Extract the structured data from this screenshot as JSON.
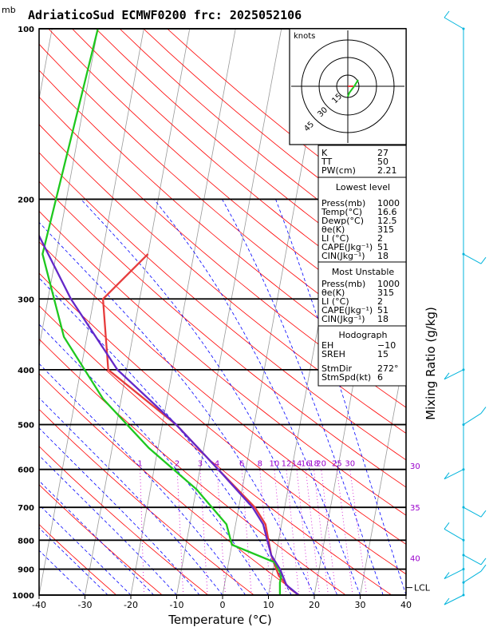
{
  "chart_data": {
    "type": "line",
    "title": "AdriaticoSud  ECMWF0200  frc: 2025052106",
    "pressure_unit": "mb",
    "xlabel": "Temperature (°C)",
    "right_label": "Mixing Ratio (g/kg)",
    "xlim": [
      -40,
      40
    ],
    "ylim": [
      1000,
      100
    ],
    "x_ticks": [
      "-40",
      "-30",
      "-20",
      "-10",
      "0",
      "10",
      "20",
      "30",
      "40"
    ],
    "pressure_levels": [
      "100",
      "200",
      "300",
      "400",
      "500",
      "600",
      "700",
      "800",
      "900",
      "1000"
    ],
    "mixing_ratio_labels": [
      "1",
      "2",
      "3",
      "4",
      "6",
      "8",
      "10",
      "12",
      "14",
      "16",
      "18",
      "20",
      "25",
      "30"
    ],
    "theta_e_labels": [
      "30",
      "35",
      "40"
    ],
    "lcl_label": "LCL",
    "lcl_pressure": 970,
    "series": [
      {
        "color": "#e63c3c",
        "x": [
          16.6,
          14.5,
          11.5,
          9.0,
          6.5,
          3.5,
          -6.0,
          -17,
          -34,
          -38,
          -30
        ],
        "y": [
          1000,
          975,
          925,
          850,
          750,
          700,
          600,
          500,
          400,
          300,
          250
        ]
      },
      {
        "color": "#1ec81e",
        "x": [
          12.5,
          12.0,
          12.0,
          10.0,
          0,
          -2.0,
          -10.0,
          -22,
          -34,
          -45,
          -53,
          -50
        ],
        "y": [
          1000,
          950,
          920,
          875,
          815,
          750,
          650,
          550,
          450,
          350,
          250,
          100
        ]
      },
      {
        "color": "#6428c8",
        "x": [
          16.6,
          13.5,
          11.5,
          9.0,
          6.0,
          3.0,
          -6.0,
          -17.0,
          -32,
          -45,
          -60,
          -72
        ],
        "y": [
          1000,
          960,
          900,
          850,
          750,
          700,
          600,
          500,
          400,
          300,
          200,
          100
        ]
      }
    ]
  },
  "hodograph": {
    "units": "knots",
    "ring_labels": [
      "15",
      "30",
      "45"
    ]
  },
  "indices": {
    "top": [
      {
        "label": "K",
        "value": "27"
      },
      {
        "label": "TT",
        "value": "50"
      },
      {
        "label": "PW(cm)",
        "value": "2.21"
      }
    ],
    "lowest_title": "Lowest level",
    "lowest": [
      {
        "label": "Press(mb)",
        "value": "1000"
      },
      {
        "label": "Temp(°C)",
        "value": "16.6"
      },
      {
        "label": "Dewp(°C)",
        "value": "12.5"
      },
      {
        "label": "θe(K)",
        "value": "315"
      },
      {
        "label": "LI (°C)",
        "value": "2"
      },
      {
        "label": "CAPE(Jkg⁻¹)",
        "value": "51"
      },
      {
        "label": "CIN(Jkg⁻¹)",
        "value": "18"
      }
    ],
    "unstable_title": "Most Unstable",
    "unstable": [
      {
        "label": "Press(mb)",
        "value": "1000"
      },
      {
        "label": "θe(K)",
        "value": "315"
      },
      {
        "label": "LI (°C)",
        "value": "2"
      },
      {
        "label": "CAPE(Jkg⁻¹)",
        "value": "51"
      },
      {
        "label": "CIN(Jkg⁻¹)",
        "value": "18"
      }
    ],
    "hodo_title": "Hodograph",
    "hodo": [
      {
        "label": "EH",
        "value": "−10"
      },
      {
        "label": "SREH",
        "value": "15"
      }
    ],
    "storm": [
      {
        "label": "StmDir",
        "value": "272°"
      },
      {
        "label": "StmSpd(kt)",
        "value": "6"
      }
    ]
  },
  "colors": {
    "temperature": "#e63c3c",
    "dewpoint": "#1ec81e",
    "parcel": "#6428c8",
    "dry_adiabat": "#ff0000",
    "moist_adiabat": "#0000ff",
    "mixing_ratio": "#cc00cc",
    "isotherm": "#999999",
    "wind_barbs": "#00b4dc"
  }
}
